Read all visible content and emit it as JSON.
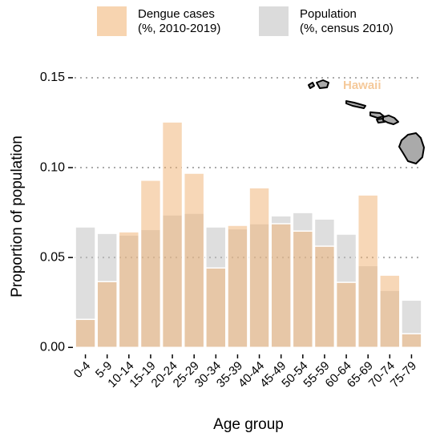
{
  "chart_data": {
    "type": "bar",
    "y_label": "Proportion of population",
    "x_label": "Age group",
    "annotation": "Hawaii",
    "categories": [
      "0-4",
      "5-9",
      "10-14",
      "15-19",
      "20-24",
      "25-29",
      "30-34",
      "35-39",
      "40-44",
      "45-49",
      "50-54",
      "55-59",
      "60-64",
      "65-69",
      "70-74",
      "75-79"
    ],
    "series": [
      {
        "name": "Dengue cases\n(%, 2010-2019)",
        "color": "#f0b070",
        "values": [
          0.0156,
          0.0366,
          0.0643,
          0.093,
          0.1254,
          0.0969,
          0.0442,
          0.0679,
          0.0888,
          0.0688,
          0.0647,
          0.0563,
          0.0362,
          0.0848,
          0.0402,
          0.0076
        ]
      },
      {
        "name": "Population\n(%, census 2010)",
        "color": "#bdbdbd",
        "values": [
          0.067,
          0.0634,
          0.0625,
          0.0656,
          0.0737,
          0.0746,
          0.067,
          0.066,
          0.0688,
          0.0732,
          0.075,
          0.0714,
          0.063,
          0.0455,
          0.0317,
          0.0263
        ]
      }
    ],
    "ylim": [
      -0.003,
      0.158
    ],
    "yticks": [
      {
        "value": 0,
        "label": "0.00"
      },
      0.05,
      {
        "value": 0.1,
        "label": "0.10"
      },
      0.15
    ],
    "grid": true
  }
}
